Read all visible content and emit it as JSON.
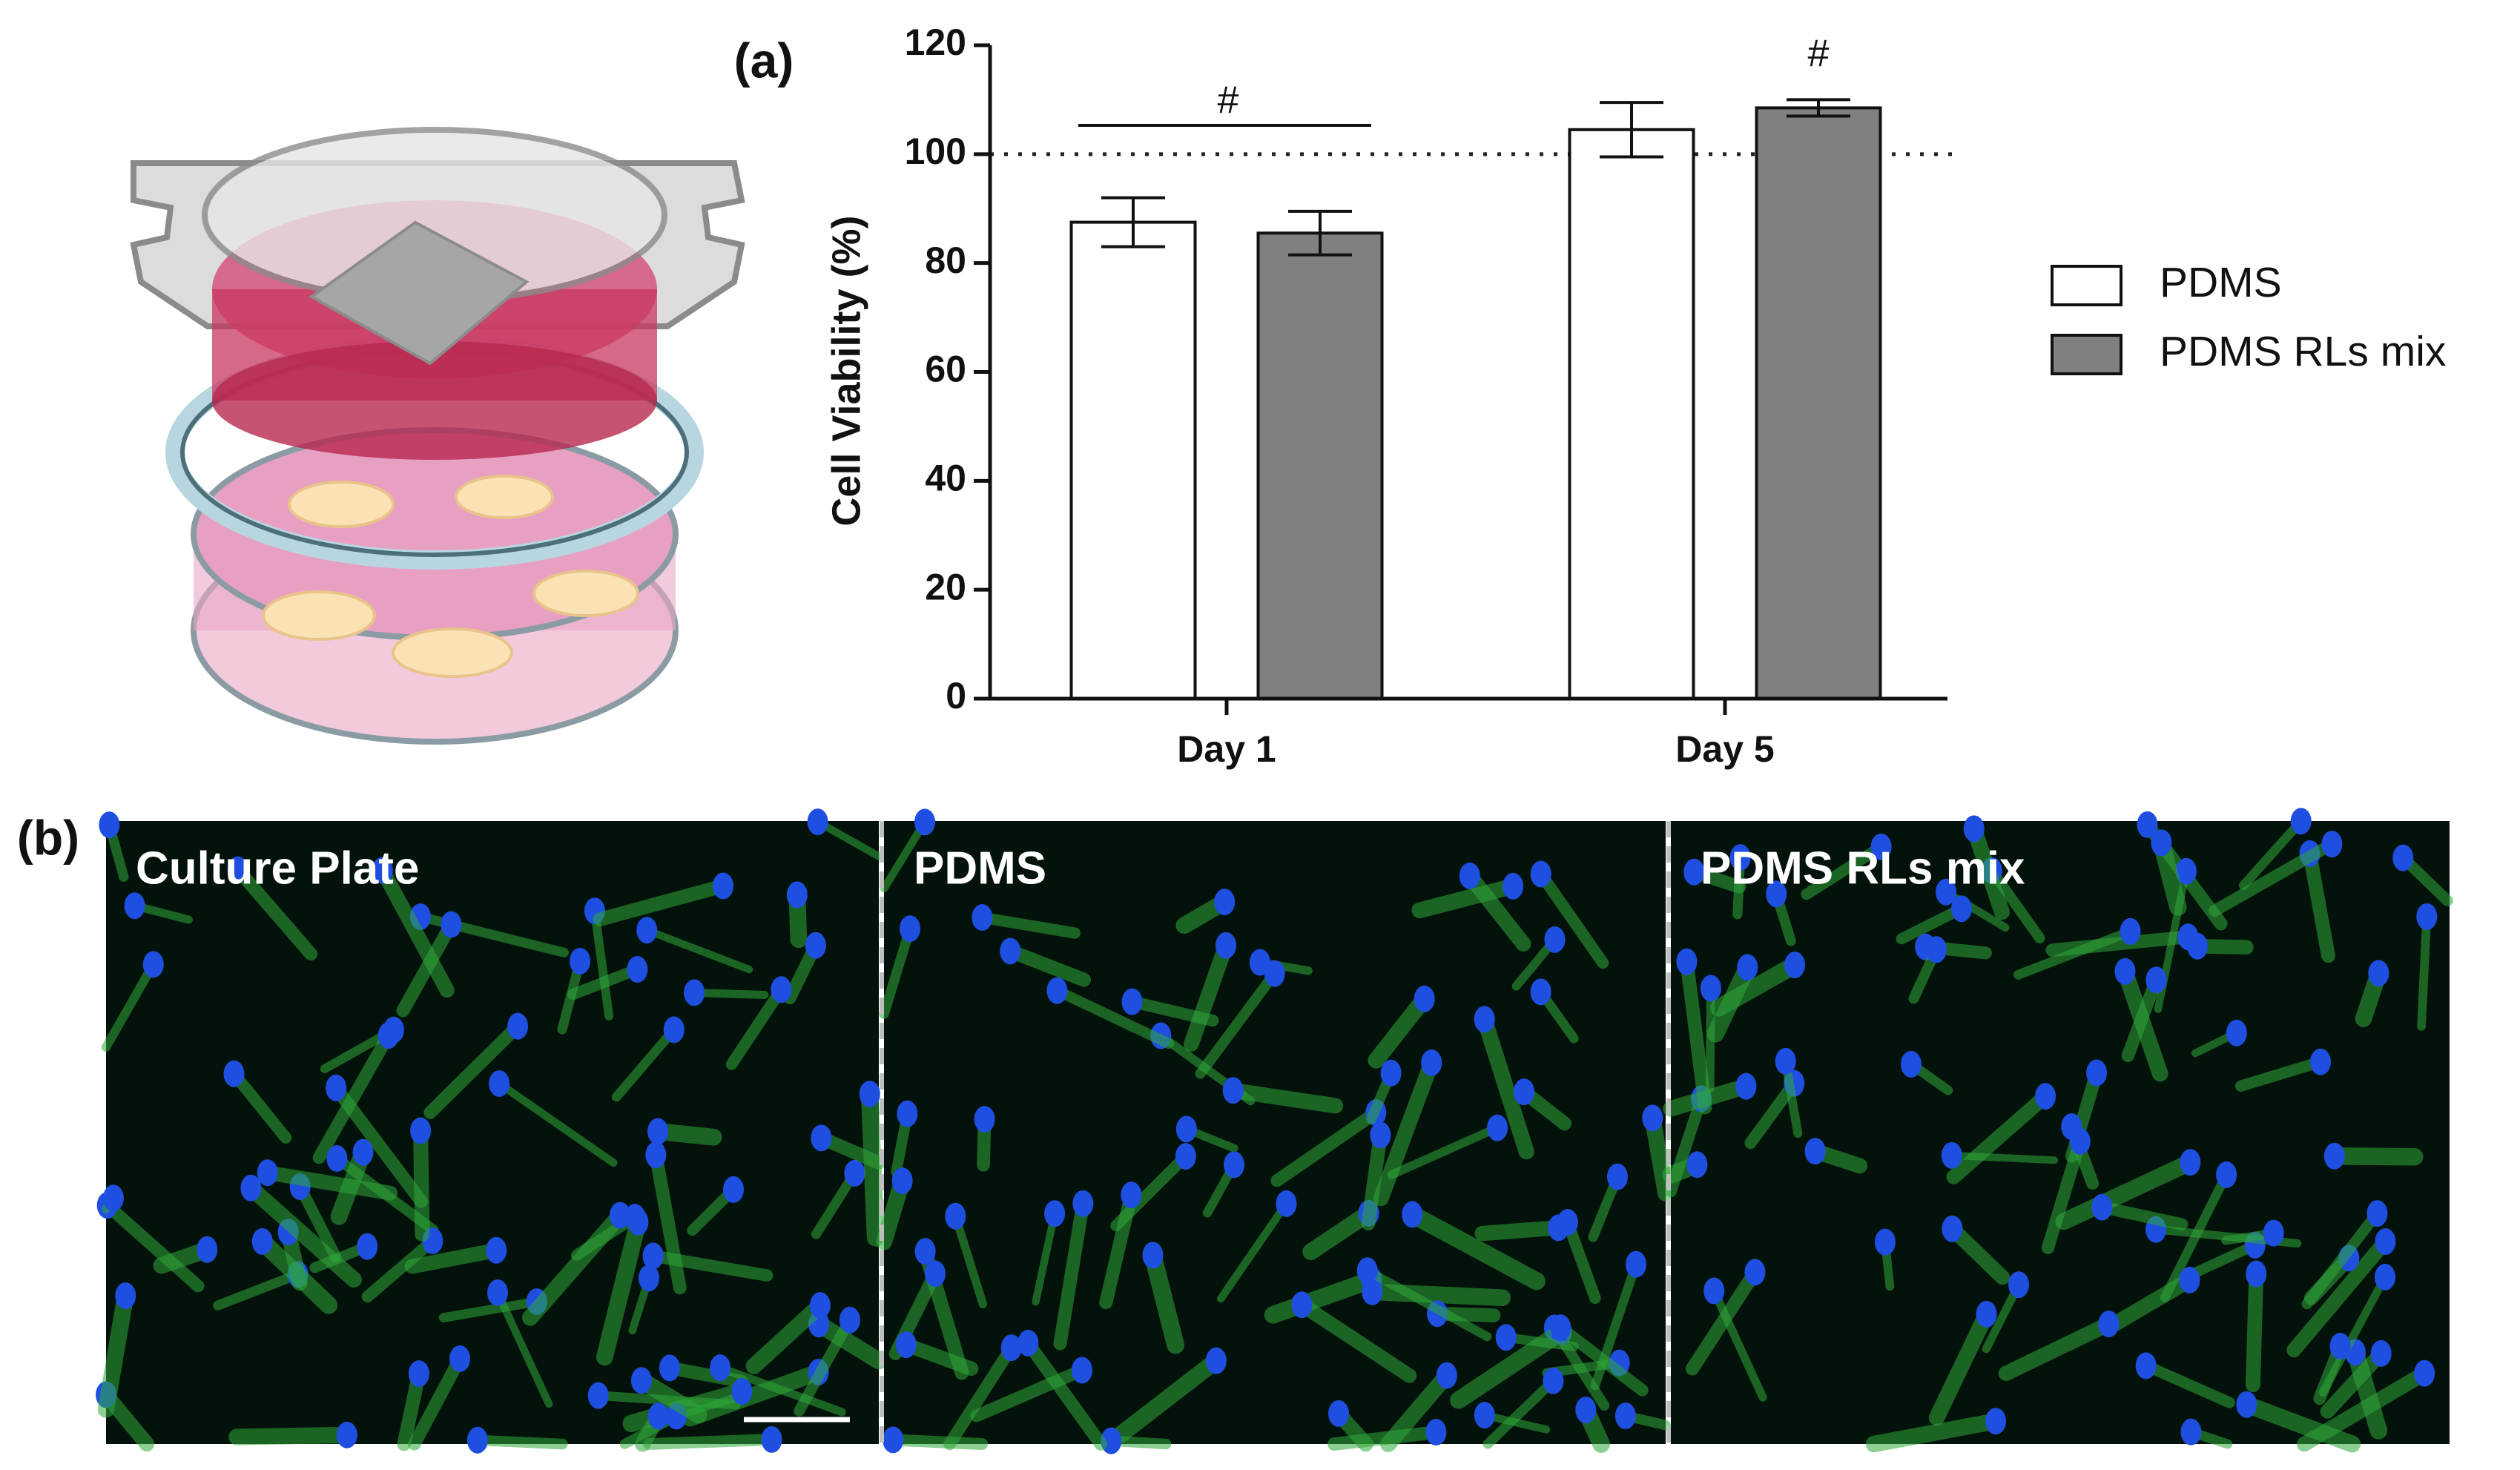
{
  "chart_data": {
    "type": "bar",
    "label": "(a)",
    "y_label": "Cell Viability (%)",
    "categories": [
      "Day 1",
      "Day 5"
    ],
    "series": [
      {
        "name": "PDMS",
        "color": "#ffffff",
        "values": [
          87.5,
          104.5
        ],
        "errors": [
          4.5,
          5
        ]
      },
      {
        "name": "PDMS RLs mix",
        "color": "#808080",
        "values": [
          85.5,
          108.5
        ],
        "errors": [
          4,
          1.5
        ]
      }
    ],
    "ylim": [
      0,
      120
    ],
    "yticks": [
      0,
      20,
      40,
      60,
      80,
      100,
      120
    ],
    "reference_line": 100,
    "annotations": [
      "#",
      "#"
    ],
    "legend": "right"
  },
  "panels": {
    "label": "(b)",
    "images": [
      "Culture Plate",
      "PDMS",
      "PDMS RLs mix"
    ]
  }
}
